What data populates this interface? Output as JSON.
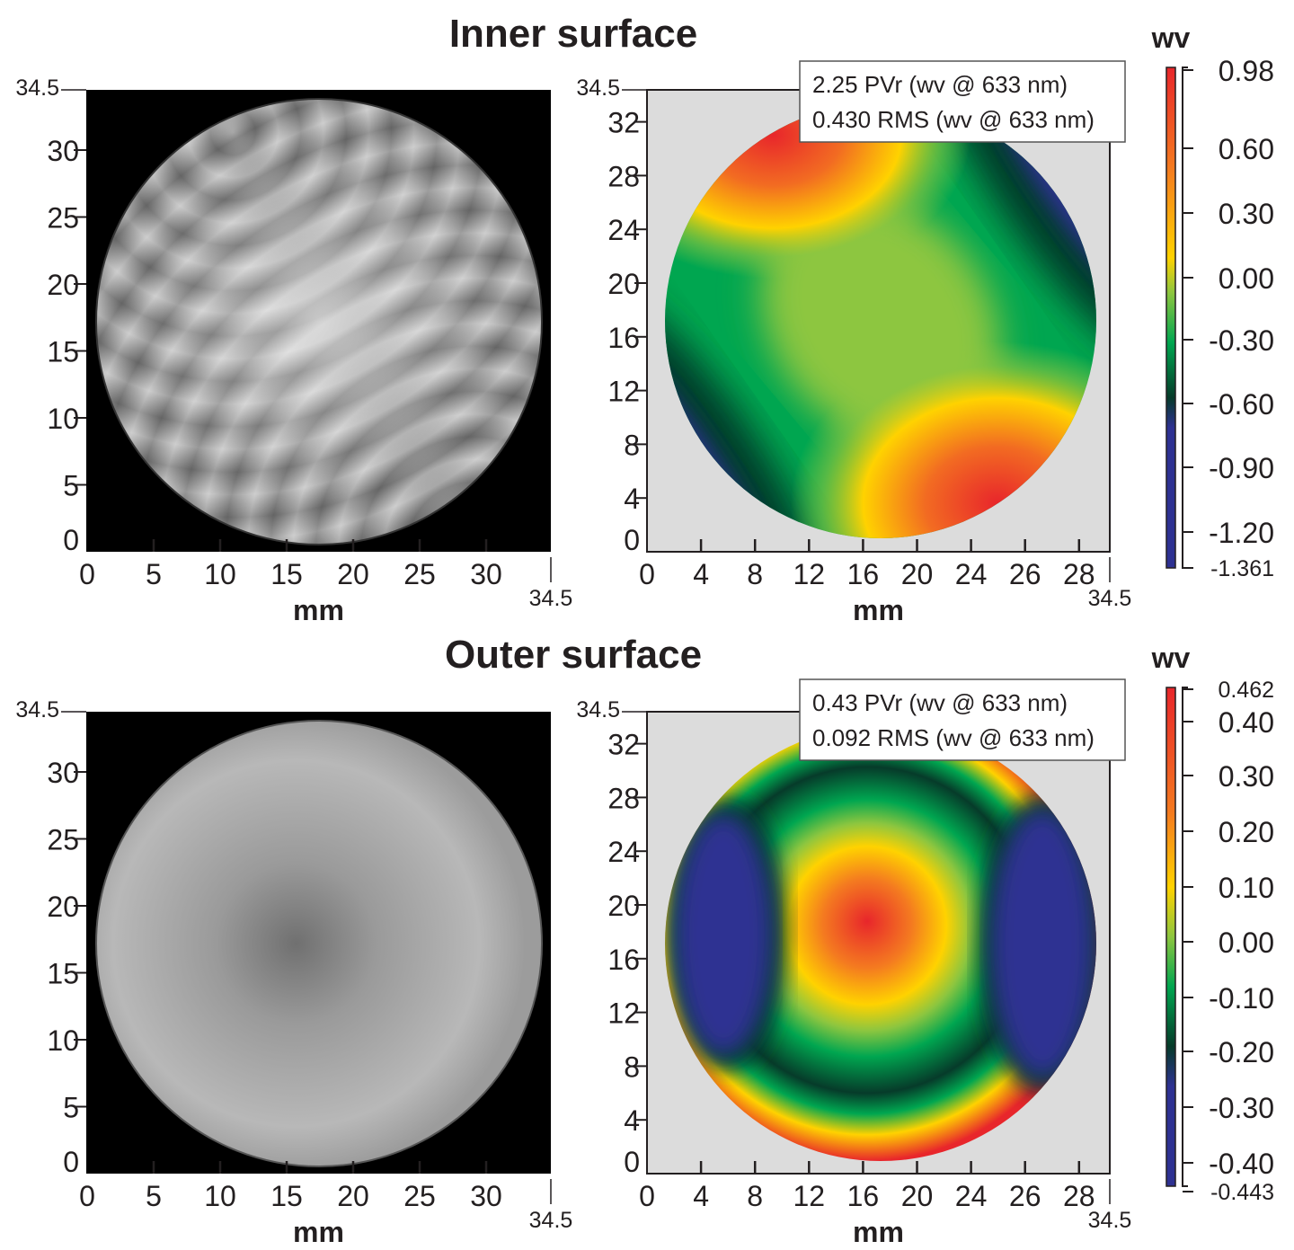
{
  "chart_data": [
    {
      "type": "heatmap",
      "title": "Inner surface",
      "panel": "interferogram",
      "xlabel": "mm",
      "x_ticks": [
        "0",
        "5",
        "10",
        "15",
        "20",
        "25",
        "30"
      ],
      "x_end": "34.5",
      "y_ticks": [
        "0",
        "5",
        "10",
        "15",
        "20",
        "25",
        "30"
      ],
      "y_end": "34.5",
      "xlim": [
        0,
        34.5
      ],
      "ylim": [
        0,
        34.5
      ],
      "colormap": "grayscale fringes"
    },
    {
      "type": "heatmap",
      "panel": "surface-map",
      "xlabel": "mm",
      "x_ticks": [
        "0",
        "4",
        "8",
        "12",
        "16",
        "20",
        "24",
        "26",
        "28"
      ],
      "x_end": "34.5",
      "y_ticks": [
        "0",
        "4",
        "8",
        "12",
        "16",
        "20",
        "24",
        "28",
        "32"
      ],
      "y_end": "34.5",
      "annotation": [
        "2.25 PVr (wv @ 633 nm)",
        "0.430 RMS (wv @ 633 nm)"
      ],
      "colorbar": {
        "label": "wv",
        "ticks": [
          "0.98",
          "0.60",
          "0.30",
          "0.00",
          "-0.30",
          "-0.60",
          "-0.90",
          "-1.20",
          "-1.361"
        ],
        "range": [
          -1.361,
          0.98
        ]
      },
      "pattern": "saddle: high (red) top-left and bottom-right, low (blue) top-right and bottom-left"
    },
    {
      "type": "heatmap",
      "title": "Outer surface",
      "panel": "interferogram",
      "xlabel": "mm",
      "x_ticks": [
        "0",
        "5",
        "10",
        "15",
        "20",
        "25",
        "30"
      ],
      "x_end": "34.5",
      "y_ticks": [
        "0",
        "5",
        "10",
        "15",
        "20",
        "25",
        "30"
      ],
      "y_end": "34.5",
      "xlim": [
        0,
        34.5
      ],
      "ylim": [
        0,
        34.5
      ],
      "colormap": "grayscale"
    },
    {
      "type": "heatmap",
      "panel": "surface-map",
      "xlabel": "mm",
      "x_ticks": [
        "0",
        "4",
        "8",
        "12",
        "16",
        "20",
        "24",
        "26",
        "28"
      ],
      "x_end": "34.5",
      "y_ticks": [
        "0",
        "4",
        "8",
        "12",
        "16",
        "20",
        "24",
        "28",
        "32"
      ],
      "y_end": "34.5",
      "annotation": [
        "0.43 PVr (wv @ 633 nm)",
        "0.092 RMS (wv @ 633 nm)"
      ],
      "colorbar": {
        "label": "wv",
        "ticks": [
          "0.462",
          "0.40",
          "0.30",
          "0.20",
          "0.10",
          "0.00",
          "-0.10",
          "-0.20",
          "-0.30",
          "-0.40",
          "-0.443"
        ],
        "range": [
          -0.443,
          0.462
        ]
      },
      "pattern": "central high (red) ellipse, blue side lobes, rising (yellow/red) rim"
    }
  ],
  "colors": {
    "high": "#e8262b",
    "mid_high": "#ffd200",
    "zero": "#00a650",
    "low_dark": "#063b2a",
    "low": "#2e3192",
    "background": "#dcdcdc"
  }
}
